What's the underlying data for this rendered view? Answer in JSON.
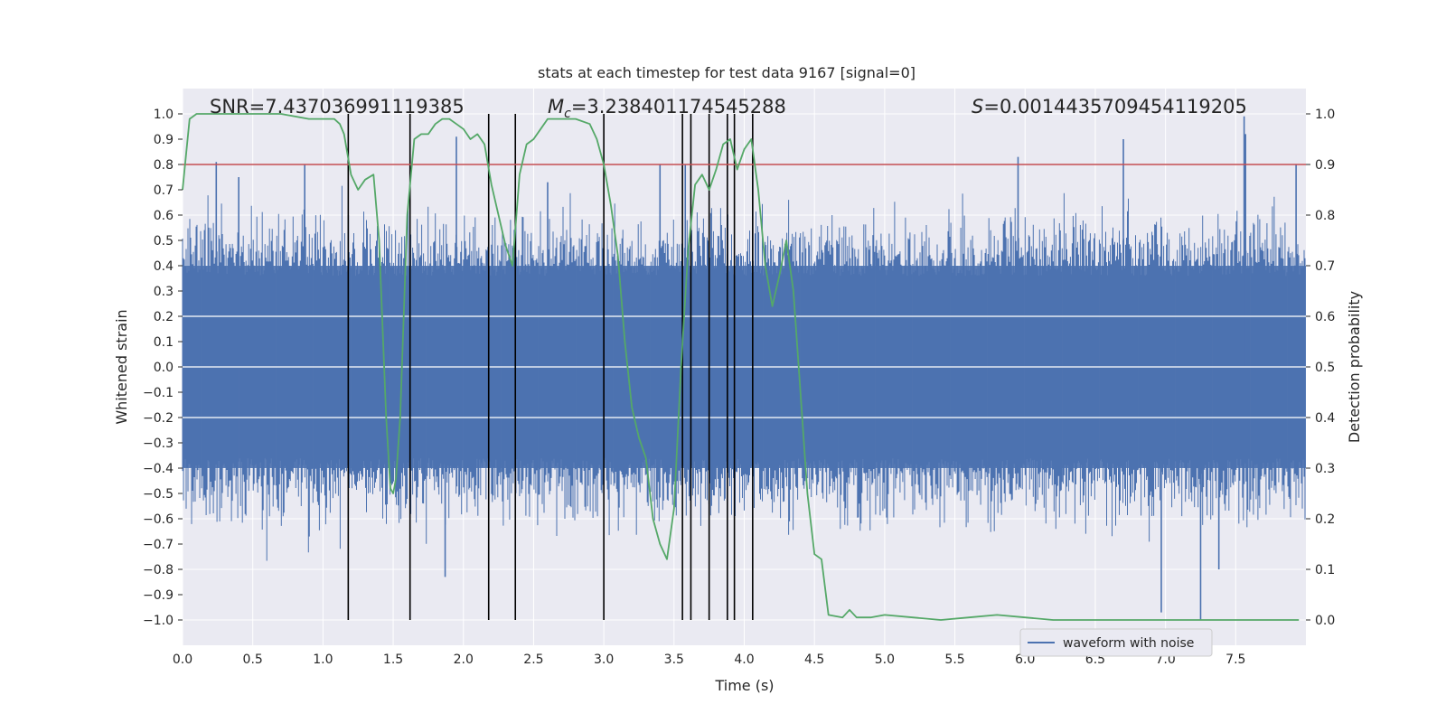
{
  "chart_data": {
    "type": "line",
    "title": "stats at each timestep for test data 9167 [signal=0]",
    "xlabel": "Time (s)",
    "ylabel_left": "Whitened strain",
    "ylabel_right": "Detection probability",
    "xlim": [
      0.0,
      8.0
    ],
    "ylim_left": [
      -1.1,
      1.1
    ],
    "ylim_right": [
      -0.05,
      1.05
    ],
    "grid": true,
    "legend_position": "bottom-right",
    "annotations": {
      "snr": "SNR=7.437036991119385",
      "mc_symbol": "M",
      "mc_subscript": "c",
      "mc_value": "=3.238401174545288",
      "s_symbol": "S",
      "s_value": "=0.0014435709454119205"
    },
    "x_ticks": [
      "0.0",
      "0.5",
      "1.0",
      "1.5",
      "2.0",
      "2.5",
      "3.0",
      "3.5",
      "4.0",
      "4.5",
      "5.0",
      "5.5",
      "6.0",
      "6.5",
      "7.0",
      "7.5"
    ],
    "x_tick_values": [
      0.0,
      0.5,
      1.0,
      1.5,
      2.0,
      2.5,
      3.0,
      3.5,
      4.0,
      4.5,
      5.0,
      5.5,
      6.0,
      6.5,
      7.0,
      7.5
    ],
    "y_left_ticks": [
      "1.0",
      "0.9",
      "0.8",
      "0.7",
      "0.6",
      "0.5",
      "0.4",
      "0.3",
      "0.2",
      "0.1",
      "0.0",
      "−0.1",
      "−0.2",
      "−0.3",
      "−0.4",
      "−0.5",
      "−0.6",
      "−0.7",
      "−0.8",
      "−0.9",
      "−1.0"
    ],
    "y_left_tick_values": [
      1.0,
      0.9,
      0.8,
      0.7,
      0.6,
      0.5,
      0.4,
      0.3,
      0.2,
      0.1,
      0.0,
      -0.1,
      -0.2,
      -0.3,
      -0.4,
      -0.5,
      -0.6,
      -0.7,
      -0.8,
      -0.9,
      -1.0
    ],
    "y_right_ticks": [
      "1.0",
      "0.9",
      "0.8",
      "0.7",
      "0.6",
      "0.5",
      "0.4",
      "0.3",
      "0.2",
      "0.1",
      "0.0"
    ],
    "y_right_tick_values": [
      1.0,
      0.9,
      0.8,
      0.7,
      0.6,
      0.5,
      0.4,
      0.3,
      0.2,
      0.1,
      0.0
    ],
    "threshold": {
      "value": 0.8,
      "color": "#c44e52"
    },
    "vertical_markers": {
      "x": [
        1.18,
        1.62,
        2.18,
        2.37,
        3.0,
        3.56,
        3.62,
        3.75,
        3.88,
        3.93,
        4.06
      ],
      "ymin": -1.0,
      "ymax": 1.0,
      "color": "#000000"
    },
    "series": [
      {
        "name": "waveform with noise",
        "color": "#4c72b0",
        "axis": "left",
        "description_peaks": {
          "x": [
            0.24,
            0.4,
            0.87,
            1.18,
            1.87,
            1.95,
            2.6,
            3.4,
            3.58,
            4.06,
            5.95,
            6.7,
            6.97,
            7.25,
            7.56,
            7.57,
            7.93,
            7.38
          ],
          "y": [
            0.81,
            0.75,
            0.8,
            0.6,
            -0.83,
            0.91,
            0.73,
            0.8,
            0.8,
            0.77,
            0.83,
            0.9,
            -0.97,
            -1.0,
            0.99,
            0.92,
            0.8,
            -0.8
          ]
        }
      },
      {
        "name": "",
        "color": "#55a868",
        "axis": "right",
        "x": [
          0.0,
          0.05,
          0.1,
          0.2,
          0.3,
          0.5,
          0.7,
          0.9,
          1.0,
          1.08,
          1.12,
          1.15,
          1.2,
          1.25,
          1.3,
          1.36,
          1.4,
          1.45,
          1.48,
          1.5,
          1.52,
          1.55,
          1.6,
          1.65,
          1.7,
          1.75,
          1.8,
          1.85,
          1.9,
          1.95,
          2.0,
          2.05,
          2.1,
          2.15,
          2.2,
          2.25,
          2.3,
          2.35,
          2.4,
          2.45,
          2.5,
          2.55,
          2.6,
          2.65,
          2.7,
          2.75,
          2.8,
          2.9,
          2.95,
          3.0,
          3.05,
          3.1,
          3.15,
          3.2,
          3.25,
          3.3,
          3.35,
          3.4,
          3.45,
          3.5,
          3.55,
          3.6,
          3.65,
          3.7,
          3.75,
          3.8,
          3.85,
          3.9,
          3.95,
          4.0,
          4.05,
          4.1,
          4.15,
          4.2,
          4.25,
          4.3,
          4.35,
          4.4,
          4.45,
          4.5,
          4.55,
          4.6,
          4.7,
          4.75,
          4.8,
          4.9,
          5.0,
          5.2,
          5.4,
          5.6,
          5.8,
          6.0,
          6.2,
          6.6,
          7.0,
          7.4,
          7.8,
          7.95
        ],
        "y": [
          0.85,
          0.99,
          1.0,
          1.0,
          1.0,
          1.0,
          1.0,
          0.99,
          0.99,
          0.99,
          0.98,
          0.96,
          0.88,
          0.85,
          0.87,
          0.88,
          0.75,
          0.4,
          0.26,
          0.25,
          0.28,
          0.4,
          0.8,
          0.95,
          0.96,
          0.96,
          0.98,
          0.99,
          0.99,
          0.98,
          0.97,
          0.95,
          0.96,
          0.94,
          0.86,
          0.8,
          0.74,
          0.7,
          0.88,
          0.94,
          0.95,
          0.97,
          0.99,
          0.99,
          0.99,
          0.99,
          0.99,
          0.98,
          0.95,
          0.9,
          0.82,
          0.72,
          0.55,
          0.42,
          0.36,
          0.32,
          0.2,
          0.15,
          0.12,
          0.22,
          0.5,
          0.73,
          0.86,
          0.88,
          0.85,
          0.89,
          0.94,
          0.95,
          0.89,
          0.93,
          0.95,
          0.85,
          0.7,
          0.62,
          0.68,
          0.75,
          0.65,
          0.45,
          0.25,
          0.13,
          0.12,
          0.01,
          0.005,
          0.02,
          0.005,
          0.005,
          0.01,
          0.005,
          0.0,
          0.005,
          0.01,
          0.005,
          0.0,
          0.0,
          0.0,
          0.0,
          0.0,
          0.0
        ]
      }
    ]
  }
}
